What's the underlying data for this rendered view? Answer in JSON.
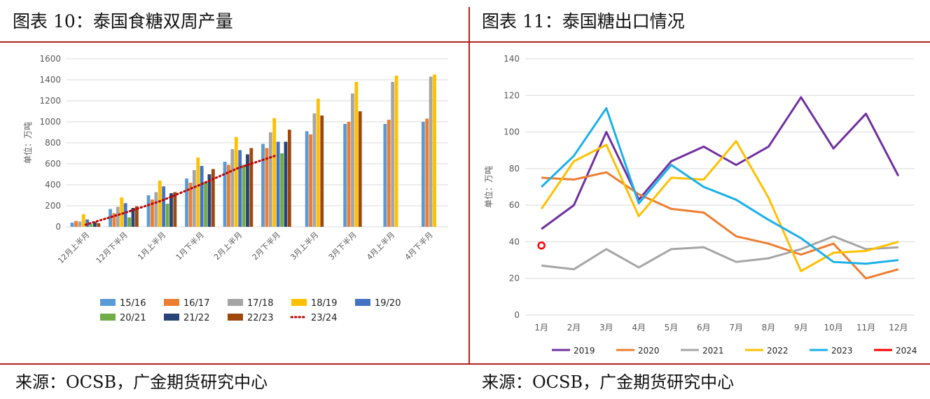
{
  "left": {
    "title": "图表 10：泰国食糖双周产量",
    "source": "来源：OCSB，广金期货研究中心"
  },
  "right": {
    "title": "图表 11：泰国糖出口情况",
    "source": "来源：OCSB，广金期货研究中心"
  },
  "colors": {
    "rule": "#b51f1f",
    "grid": "#d9d9d9",
    "axis_text": "#595959"
  },
  "chart_data": [
    {
      "type": "bar",
      "ylabel": "单位：万吨",
      "ylim": [
        0,
        1600
      ],
      "yticks": [
        0,
        200,
        400,
        600,
        800,
        1000,
        1200,
        1400,
        1600
      ],
      "grid": true,
      "legend_position": "bottom",
      "categories": [
        "12月上半月",
        "12月下半月",
        "1月上半月",
        "1月下半月",
        "2月上半月",
        "2月下半月",
        "3月上半月",
        "3月下半月",
        "4月上半月",
        "4月下半月"
      ],
      "series": [
        {
          "name": "15/16",
          "color": "#5b9bd5",
          "values": [
            40,
            170,
            300,
            460,
            620,
            790,
            910,
            980,
            980,
            1000
          ]
        },
        {
          "name": "16/17",
          "color": "#ed7d31",
          "values": [
            55,
            130,
            260,
            420,
            590,
            750,
            880,
            1000,
            1020,
            1030
          ]
        },
        {
          "name": "17/18",
          "color": "#a5a5a5",
          "values": [
            50,
            190,
            330,
            540,
            740,
            900,
            1080,
            1270,
            1380,
            1430
          ]
        },
        {
          "name": "18/19",
          "color": "#ffc000",
          "values": [
            120,
            280,
            440,
            660,
            855,
            1035,
            1220,
            1380,
            1440,
            1450
          ]
        },
        {
          "name": "19/20",
          "color": "#4472c4",
          "values": [
            70,
            225,
            385,
            580,
            730,
            810,
            null,
            null,
            null,
            null
          ]
        },
        {
          "name": "20/21",
          "color": "#70ad47",
          "values": [
            25,
            90,
            220,
            430,
            590,
            700,
            null,
            null,
            null,
            null
          ]
        },
        {
          "name": "21/22",
          "color": "#264478",
          "values": [
            45,
            180,
            320,
            500,
            690,
            810,
            null,
            null,
            null,
            null
          ]
        },
        {
          "name": "22/23",
          "color": "#9e480e",
          "values": [
            35,
            195,
            330,
            550,
            750,
            925,
            1060,
            1100,
            null,
            null
          ]
        },
        {
          "name": "23/24",
          "color": "#c00000",
          "style": "dotted",
          "values": [
            20,
            130,
            250,
            400,
            560,
            680,
            null,
            null,
            null,
            null
          ]
        }
      ]
    },
    {
      "type": "line",
      "ylabel": "单位：万吨",
      "ylim": [
        0,
        140
      ],
      "yticks": [
        0,
        20,
        40,
        60,
        80,
        100,
        120,
        140
      ],
      "grid": true,
      "legend_position": "bottom",
      "categories": [
        "1月",
        "2月",
        "3月",
        "4月",
        "5月",
        "6月",
        "7月",
        "8月",
        "9月",
        "10月",
        "11月",
        "12月"
      ],
      "series": [
        {
          "name": "2019",
          "color": "#7030a0",
          "values": [
            47,
            60,
            100,
            63,
            84,
            92,
            82,
            92,
            119,
            91,
            110,
            76
          ]
        },
        {
          "name": "2020",
          "color": "#ed7d31",
          "values": [
            75,
            74,
            78,
            66,
            58,
            56,
            43,
            39,
            33,
            39,
            20,
            25
          ]
        },
        {
          "name": "2021",
          "color": "#a5a5a5",
          "values": [
            27,
            25,
            36,
            26,
            36,
            37,
            29,
            31,
            36,
            43,
            36,
            37
          ]
        },
        {
          "name": "2022",
          "color": "#ffc000",
          "values": [
            58,
            84,
            93,
            54,
            75,
            74,
            95,
            64,
            24,
            34,
            35,
            40
          ]
        },
        {
          "name": "2023",
          "color": "#1ab0ea",
          "values": [
            70,
            87,
            113,
            61,
            82,
            70,
            63,
            52,
            42,
            29,
            28,
            30
          ]
        },
        {
          "name": "2024",
          "color": "#ff0000",
          "marker": "circle",
          "values": [
            38,
            null,
            null,
            null,
            null,
            null,
            null,
            null,
            null,
            null,
            null,
            null
          ]
        }
      ]
    }
  ]
}
